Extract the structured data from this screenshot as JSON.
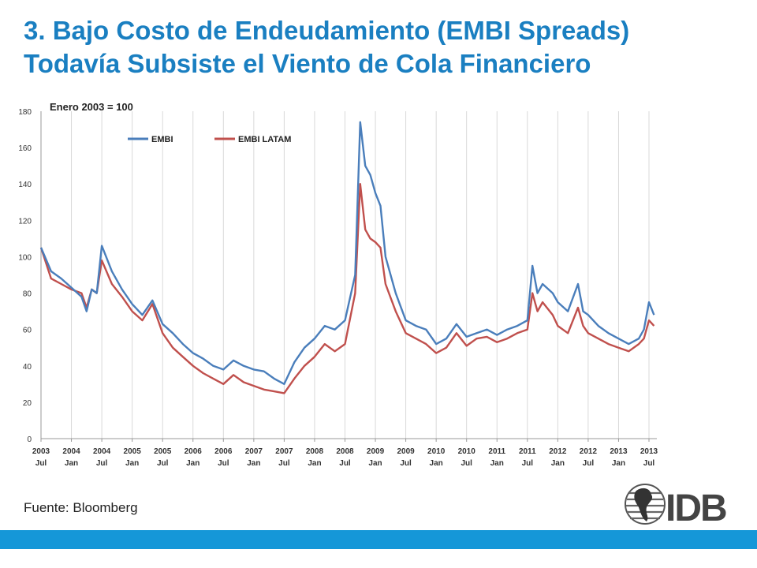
{
  "slide": {
    "title_line1": "3. Bajo Costo de Endeudamiento (EMBI Spreads)",
    "title_line2": "Todavía Subsiste el Viento de Cola Financiero",
    "source": "Fuente: Bloomberg",
    "logo_text": "IDB"
  },
  "colors": {
    "title": "#1a7fc1",
    "footer": "#1597d8",
    "embi": "#4a7ebb",
    "embi_latam": "#c0504d"
  },
  "chart_data": {
    "type": "line",
    "annotation": "Enero 2003 = 100",
    "xlabel": "",
    "ylabel": "",
    "ylim": [
      0,
      180
    ],
    "yticks": [
      0,
      20,
      40,
      60,
      80,
      100,
      120,
      140,
      160,
      180
    ],
    "grid": "vertical",
    "legend_position": "top-left",
    "x_ticks": [
      {
        "year": "2003",
        "month": "Jul"
      },
      {
        "year": "2004",
        "month": "Jan"
      },
      {
        "year": "2004",
        "month": "Jul"
      },
      {
        "year": "2005",
        "month": "Jan"
      },
      {
        "year": "2005",
        "month": "Jul"
      },
      {
        "year": "2006",
        "month": "Jan"
      },
      {
        "year": "2006",
        "month": "Jul"
      },
      {
        "year": "2007",
        "month": "Jan"
      },
      {
        "year": "2007",
        "month": "Jul"
      },
      {
        "year": "2008",
        "month": "Jan"
      },
      {
        "year": "2008",
        "month": "Jul"
      },
      {
        "year": "2009",
        "month": "Jan"
      },
      {
        "year": "2009",
        "month": "Jul"
      },
      {
        "year": "2010",
        "month": "Jan"
      },
      {
        "year": "2010",
        "month": "Jul"
      },
      {
        "year": "2011",
        "month": "Jan"
      },
      {
        "year": "2011",
        "month": "Jul"
      },
      {
        "year": "2012",
        "month": "Jan"
      },
      {
        "year": "2012",
        "month": "Jul"
      },
      {
        "year": "2013",
        "month": "Jan"
      },
      {
        "year": "2013",
        "month": "Jul"
      }
    ],
    "x": [
      "2003-07",
      "2003-09",
      "2003-11",
      "2004-01",
      "2004-03",
      "2004-04",
      "2004-05",
      "2004-06",
      "2004-07",
      "2004-09",
      "2004-11",
      "2005-01",
      "2005-03",
      "2005-05",
      "2005-07",
      "2005-09",
      "2005-11",
      "2006-01",
      "2006-03",
      "2006-05",
      "2006-07",
      "2006-09",
      "2006-11",
      "2007-01",
      "2007-03",
      "2007-05",
      "2007-07",
      "2007-09",
      "2007-11",
      "2008-01",
      "2008-03",
      "2008-05",
      "2008-07",
      "2008-09",
      "2008-10",
      "2008-11",
      "2008-12",
      "2009-01",
      "2009-02",
      "2009-03",
      "2009-05",
      "2009-07",
      "2009-09",
      "2009-11",
      "2010-01",
      "2010-03",
      "2010-05",
      "2010-07",
      "2010-09",
      "2010-11",
      "2011-01",
      "2011-03",
      "2011-05",
      "2011-07",
      "2011-08",
      "2011-09",
      "2011-10",
      "2011-12",
      "2012-01",
      "2012-03",
      "2012-05",
      "2012-06",
      "2012-07",
      "2012-09",
      "2012-11",
      "2013-01",
      "2013-03",
      "2013-05",
      "2013-06",
      "2013-07",
      "2013-08"
    ],
    "series": [
      {
        "name": "EMBI",
        "values": [
          105,
          92,
          88,
          83,
          78,
          70,
          82,
          80,
          106,
          92,
          82,
          74,
          68,
          76,
          63,
          58,
          52,
          47,
          44,
          40,
          38,
          43,
          40,
          38,
          37,
          33,
          30,
          42,
          50,
          55,
          62,
          60,
          65,
          90,
          174,
          150,
          145,
          135,
          128,
          100,
          80,
          65,
          62,
          60,
          52,
          55,
          63,
          56,
          58,
          60,
          57,
          60,
          62,
          65,
          95,
          80,
          85,
          80,
          75,
          70,
          85,
          70,
          68,
          62,
          58,
          55,
          52,
          55,
          60,
          75,
          68
        ]
      },
      {
        "name": "EMBI LATAM",
        "values": [
          105,
          88,
          85,
          82,
          80,
          72,
          82,
          80,
          98,
          85,
          78,
          70,
          65,
          74,
          58,
          50,
          45,
          40,
          36,
          33,
          30,
          35,
          31,
          29,
          27,
          26,
          25,
          33,
          40,
          45,
          52,
          48,
          52,
          80,
          140,
          115,
          110,
          108,
          105,
          85,
          70,
          58,
          55,
          52,
          47,
          50,
          58,
          51,
          55,
          56,
          53,
          55,
          58,
          60,
          80,
          70,
          75,
          68,
          62,
          58,
          72,
          62,
          58,
          55,
          52,
          50,
          48,
          52,
          55,
          65,
          62
        ]
      }
    ]
  }
}
